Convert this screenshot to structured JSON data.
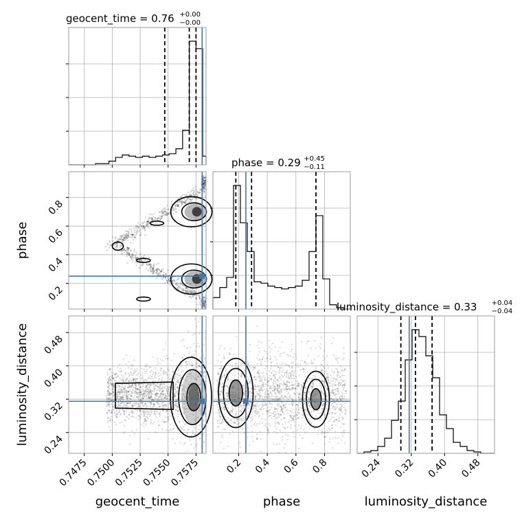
{
  "chart_data": {
    "type": "corner",
    "parameters": [
      "geocent_time",
      "phase",
      "luminosity_distance"
    ],
    "truths": {
      "geocent_time": 0.75805,
      "phase": 0.25,
      "luminosity_distance": 0.315
    },
    "ranges": {
      "geocent_time": [
        0.7461,
        0.7584
      ],
      "phase": [
        0.02,
        0.98
      ],
      "luminosity_distance": [
        0.19,
        0.52
      ]
    },
    "titles": [
      {
        "param": "geocent_time",
        "text": "geocent_time = 0.76",
        "sup": "+0.00",
        "sub": "−0.00",
        "quantiles": [
          0.7547,
          0.7569,
          0.7575
        ]
      },
      {
        "param": "phase",
        "text": "phase = 0.29",
        "sup": "+0.45",
        "sub": "−0.11",
        "quantiles": [
          0.18,
          0.29,
          0.74
        ]
      },
      {
        "param": "luminosity_distance",
        "text": "luminosity_distance = 0.33",
        "sup": "+0.04",
        "sub": "−0.04",
        "quantiles": [
          0.295,
          0.33,
          0.37
        ]
      }
    ],
    "ticks": {
      "geocent_time": [
        {
          "v": 0.7475,
          "label": "0.7475"
        },
        {
          "v": 0.75,
          "label": "0.7500"
        },
        {
          "v": 0.7525,
          "label": "0.7525"
        },
        {
          "v": 0.755,
          "label": "0.7550"
        },
        {
          "v": 0.7575,
          "label": "0.7575"
        }
      ],
      "phase": [
        {
          "v": 0.2,
          "label": "0.2"
        },
        {
          "v": 0.4,
          "label": "0.4"
        },
        {
          "v": 0.6,
          "label": "0.6"
        },
        {
          "v": 0.8,
          "label": "0.8"
        }
      ],
      "luminosity_distance": [
        {
          "v": 0.24,
          "label": "0.24"
        },
        {
          "v": 0.32,
          "label": "0.32"
        },
        {
          "v": 0.4,
          "label": "0.40"
        },
        {
          "v": 0.48,
          "label": "0.48"
        }
      ]
    },
    "histograms": {
      "geocent_time": {
        "edges": [
          0.7461,
          0.7467,
          0.7473,
          0.7479,
          0.7485,
          0.7491,
          0.7497,
          0.7503,
          0.7509,
          0.7515,
          0.7521,
          0.7527,
          0.7533,
          0.7539,
          0.7545,
          0.7551,
          0.7557,
          0.7563,
          0.7569,
          0.7575,
          0.7581,
          0.7584
        ],
        "counts": [
          0,
          0,
          0,
          0,
          1,
          1,
          3,
          6,
          8,
          7,
          6,
          7,
          6,
          7,
          8,
          9,
          13,
          28,
          100,
          94,
          7
        ]
      },
      "phase": {
        "edges": [
          0.02,
          0.068,
          0.116,
          0.164,
          0.212,
          0.26,
          0.308,
          0.356,
          0.404,
          0.452,
          0.5,
          0.548,
          0.596,
          0.644,
          0.692,
          0.74,
          0.788,
          0.836,
          0.884,
          0.932,
          0.98
        ],
        "counts": [
          8,
          15,
          22,
          86,
          60,
          40,
          19,
          18,
          16,
          15,
          14,
          15,
          16,
          20,
          40,
          65,
          21,
          3,
          1,
          0
        ]
      },
      "luminosity_distance": {
        "edges": [
          0.19,
          0.2065,
          0.223,
          0.2395,
          0.256,
          0.2725,
          0.289,
          0.3055,
          0.322,
          0.3385,
          0.355,
          0.3715,
          0.388,
          0.4045,
          0.421,
          0.4375,
          0.454,
          0.4705,
          0.487,
          0.5035,
          0.52
        ],
        "counts": [
          0,
          1,
          2,
          5,
          11,
          24,
          38,
          68,
          90,
          85,
          71,
          55,
          28,
          18,
          8,
          5,
          2,
          1,
          0,
          0
        ]
      }
    },
    "grid": true,
    "truth_color": "#4477aa",
    "hist_color": "#000000"
  }
}
